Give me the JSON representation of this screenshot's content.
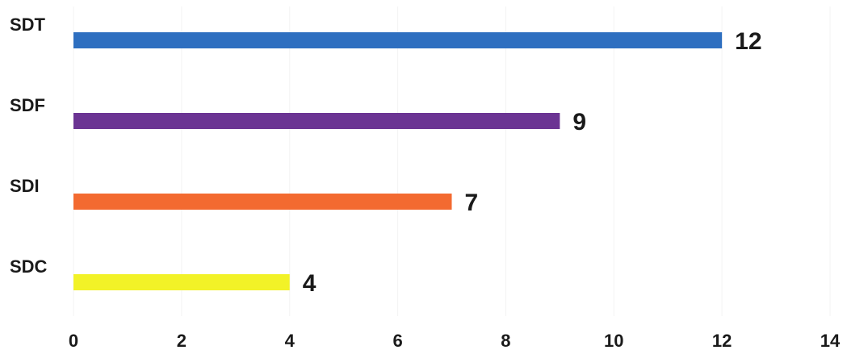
{
  "chart_data": {
    "type": "bar",
    "orientation": "horizontal",
    "title": "",
    "xlabel": "",
    "ylabel": "",
    "categories": [
      "SDT",
      "SDF",
      "SDI",
      "SDC"
    ],
    "values": [
      12,
      9,
      7,
      4
    ],
    "value_labels": [
      "12",
      "9",
      "7",
      "4"
    ],
    "colors": [
      "#2e6fc0",
      "#6b3493",
      "#f36a30",
      "#f2f227"
    ],
    "xlim": [
      0,
      14
    ],
    "x_ticks": [
      0,
      2,
      4,
      6,
      8,
      10,
      12,
      14
    ],
    "x_tick_labels": [
      "0",
      "2",
      "4",
      "6",
      "8",
      "10",
      "12",
      "14"
    ],
    "grid": true,
    "legend": "none"
  }
}
